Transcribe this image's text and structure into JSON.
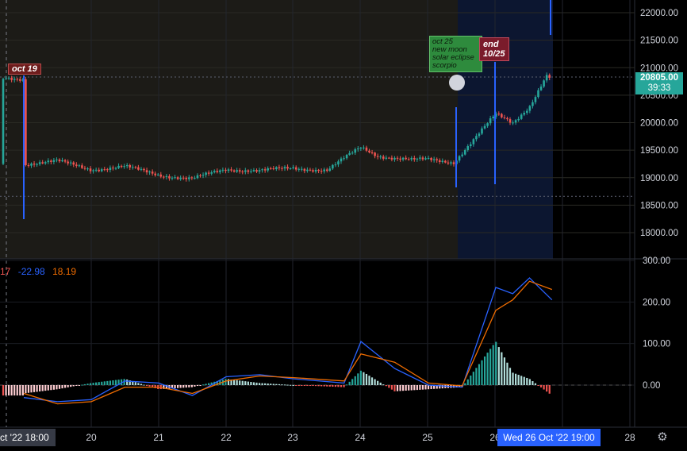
{
  "chart_data": [
    {
      "type": "candlestick",
      "title": "",
      "ylim": [
        17600,
        22300
      ],
      "yticks": [
        18000,
        18500,
        19000,
        19500,
        20000,
        20500,
        21000,
        21500,
        22000
      ],
      "ytick_labels": [
        "18000.00",
        "18500.00",
        "19000.00",
        "19500.00",
        "20000.00",
        "20500.00",
        "21000.00",
        "21500.00",
        "22000.00"
      ],
      "x_tick_labels": [
        "20",
        "21",
        "22",
        "23",
        "24",
        "25",
        "26",
        "28"
      ],
      "current_price": "20805.00",
      "countdown": "39:33",
      "ref_lines": [
        20830,
        18660
      ],
      "close_path": [
        {
          "t": "Oct 19 00:00",
          "v": 19250
        },
        {
          "t": "Oct 19 12:00",
          "v": 19300
        },
        {
          "t": "Oct 20 00:00",
          "v": 19150
        },
        {
          "t": "Oct 20 12:00",
          "v": 19200
        },
        {
          "t": "Oct 21 00:00",
          "v": 19050
        },
        {
          "t": "Oct 21 12:00",
          "v": 18980
        },
        {
          "t": "Oct 22 00:00",
          "v": 19150
        },
        {
          "t": "Oct 22 12:00",
          "v": 19130
        },
        {
          "t": "Oct 23 00:00",
          "v": 19170
        },
        {
          "t": "Oct 23 12:00",
          "v": 19140
        },
        {
          "t": "Oct 23 18:00",
          "v": 19350
        },
        {
          "t": "Oct 24 00:00",
          "v": 19550
        },
        {
          "t": "Oct 24 06:00",
          "v": 19400
        },
        {
          "t": "Oct 24 18:00",
          "v": 19320
        },
        {
          "t": "Oct 25 00:00",
          "v": 19330
        },
        {
          "t": "Oct 25 09:00",
          "v": 19280
        },
        {
          "t": "Oct 25 18:00",
          "v": 19800
        },
        {
          "t": "Oct 26 00:00",
          "v": 20150
        },
        {
          "t": "Oct 26 06:00",
          "v": 20000
        },
        {
          "t": "Oct 26 12:00",
          "v": 20300
        },
        {
          "t": "Oct 26 18:00",
          "v": 20850
        },
        {
          "t": "Oct 26 20:00",
          "v": 20800
        }
      ]
    },
    {
      "type": "line",
      "title": "",
      "legend_values": [
        "17",
        "-22.98",
        "18.19"
      ],
      "ylim": [
        -350,
        320
      ],
      "yticks": [
        0,
        100,
        200,
        300
      ],
      "ytick_labels": [
        "0.00",
        "100.00",
        "200.00",
        "300.00"
      ],
      "series": [
        {
          "name": "",
          "color": "#2962ff",
          "points": [
            {
              "t": "Oct 19 00:00",
              "v": -30
            },
            {
              "t": "Oct 19 12:00",
              "v": -40
            },
            {
              "t": "Oct 20 00:00",
              "v": -35
            },
            {
              "t": "Oct 20 12:00",
              "v": 10
            },
            {
              "t": "Oct 21 00:00",
              "v": 5
            },
            {
              "t": "Oct 21 12:00",
              "v": -25
            },
            {
              "t": "Oct 22 00:00",
              "v": 20
            },
            {
              "t": "Oct 22 12:00",
              "v": 25
            },
            {
              "t": "Oct 23 00:00",
              "v": 15
            },
            {
              "t": "Oct 23 18:00",
              "v": 5
            },
            {
              "t": "Oct 24 00:00",
              "v": 105
            },
            {
              "t": "Oct 24 12:00",
              "v": 40
            },
            {
              "t": "Oct 25 00:00",
              "v": 0
            },
            {
              "t": "Oct 25 12:00",
              "v": -5
            },
            {
              "t": "Oct 26 00:00",
              "v": 235
            },
            {
              "t": "Oct 26 06:00",
              "v": 220
            },
            {
              "t": "Oct 26 12:00",
              "v": 258
            },
            {
              "t": "Oct 26 20:00",
              "v": 205
            }
          ]
        },
        {
          "name": "",
          "color": "#ef6c00",
          "points": [
            {
              "t": "Oct 19 00:00",
              "v": -20
            },
            {
              "t": "Oct 19 12:00",
              "v": -45
            },
            {
              "t": "Oct 20 00:00",
              "v": -40
            },
            {
              "t": "Oct 20 12:00",
              "v": -5
            },
            {
              "t": "Oct 21 00:00",
              "v": -5
            },
            {
              "t": "Oct 21 12:00",
              "v": -20
            },
            {
              "t": "Oct 22 00:00",
              "v": 10
            },
            {
              "t": "Oct 22 12:00",
              "v": 22
            },
            {
              "t": "Oct 23 00:00",
              "v": 18
            },
            {
              "t": "Oct 23 18:00",
              "v": 10
            },
            {
              "t": "Oct 24 00:00",
              "v": 75
            },
            {
              "t": "Oct 24 12:00",
              "v": 55
            },
            {
              "t": "Oct 25 00:00",
              "v": 5
            },
            {
              "t": "Oct 25 12:00",
              "v": -2
            },
            {
              "t": "Oct 26 00:00",
              "v": 180
            },
            {
              "t": "Oct 26 06:00",
              "v": 205
            },
            {
              "t": "Oct 26 12:00",
              "v": 250
            },
            {
              "t": "Oct 26 20:00",
              "v": 230
            }
          ]
        }
      ],
      "histogram": [
        {
          "t": "Oct 19 00:00",
          "v": -20
        },
        {
          "t": "Oct 19 12:00",
          "v": -10
        },
        {
          "t": "Oct 20 00:00",
          "v": 5
        },
        {
          "t": "Oct 20 12:00",
          "v": 15
        },
        {
          "t": "Oct 21 00:00",
          "v": -10
        },
        {
          "t": "Oct 21 12:00",
          "v": -5
        },
        {
          "t": "Oct 22 00:00",
          "v": 15
        },
        {
          "t": "Oct 22 12:00",
          "v": 5
        },
        {
          "t": "Oct 23 00:00",
          "v": 0
        },
        {
          "t": "Oct 23 18:00",
          "v": -5
        },
        {
          "t": "Oct 24 00:00",
          "v": 35
        },
        {
          "t": "Oct 24 12:00",
          "v": -15
        },
        {
          "t": "Oct 25 00:00",
          "v": -10
        },
        {
          "t": "Oct 25 12:00",
          "v": -5
        },
        {
          "t": "Oct 26 00:00",
          "v": 105
        },
        {
          "t": "Oct 26 06:00",
          "v": 30
        },
        {
          "t": "Oct 26 12:00",
          "v": 15
        },
        {
          "t": "Oct 26 20:00",
          "v": -25
        }
      ]
    }
  ],
  "annotations": {
    "oct19": "oct 19",
    "eclipse": [
      "oct 25",
      "new moon",
      "solar eclipse",
      "scorpio"
    ],
    "end": [
      "end",
      "10/25"
    ]
  },
  "time_axis": {
    "left_label": "ct '22   18:00",
    "crosshair_label": "Wed 26 Oct '22   19:00"
  },
  "colors": {
    "up": "#26a69a",
    "down": "#ef5350",
    "macd": "#2962ff",
    "signal": "#ef6c00",
    "band": "#0c1630",
    "bg_left": "#1c1b17"
  },
  "icons": {
    "settings": "gear-icon"
  }
}
